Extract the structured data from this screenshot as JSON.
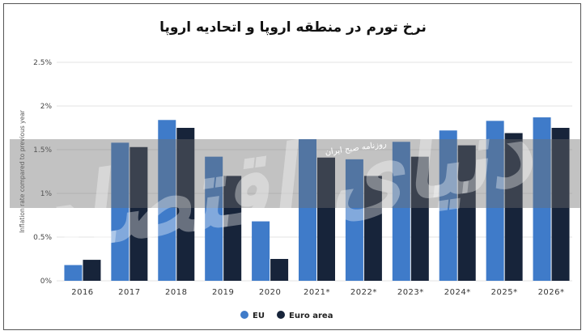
{
  "chart_data": {
    "type": "bar",
    "title": "نرخ تورم در منطقه اروپا و اتحادیه اروپا",
    "ylabel": "Inflation rate compared to previous year",
    "xlabel": "",
    "categories": [
      "2016",
      "2017",
      "2018",
      "2019",
      "2020",
      "2021*",
      "2022*",
      "2023*",
      "2024*",
      "2025*",
      "2026*"
    ],
    "series": [
      {
        "name": "EU",
        "color": "#3f7bc9",
        "values": [
          0.18,
          1.58,
          1.84,
          1.42,
          0.68,
          1.62,
          1.39,
          1.59,
          1.72,
          1.83,
          1.87
        ]
      },
      {
        "name": "Euro area",
        "color": "#17243a",
        "values": [
          0.24,
          1.53,
          1.75,
          1.2,
          0.25,
          1.41,
          1.2,
          1.42,
          1.55,
          1.69,
          1.75
        ]
      }
    ],
    "y_ticks": [
      "0%",
      "0.5%",
      "1%",
      "1.5%",
      "2%",
      "2.5%"
    ],
    "ylim": [
      0,
      2.5
    ],
    "grid": true,
    "legend_position": "bottom-center"
  },
  "watermark": {
    "caption": "روزنامه صبح ایران",
    "logo_text": "دنیای اقتصاد"
  }
}
